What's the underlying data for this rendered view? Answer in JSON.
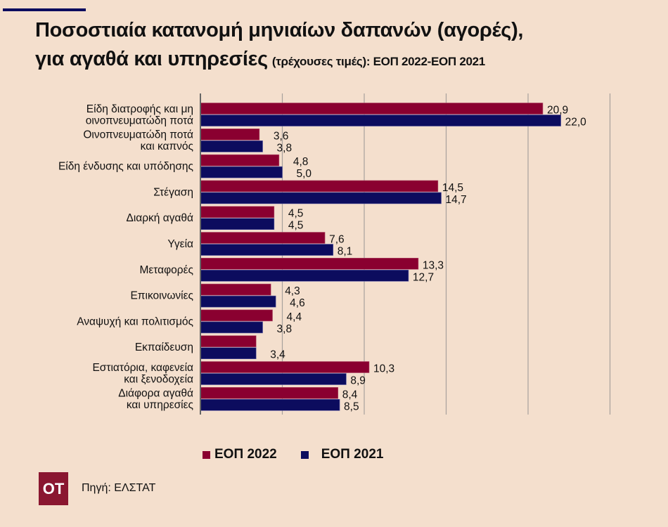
{
  "header": {
    "title_line1": "Ποσοστιαία κατανομή μηνιαίων δαπανών (αγορές),",
    "title_line2": "για αγαθά και υπηρεσίες",
    "title_sub": "(τρέχουσες τιμές): ΕΟΠ 2022-ΕΟΠ 2021"
  },
  "colors": {
    "background": "#f4dfcd",
    "series_2022": "#8a0030",
    "series_2021": "#0c0c5e",
    "accent_bar": "#0c0c5e",
    "logo_bg": "#8a1630"
  },
  "chart_data": {
    "type": "bar",
    "orientation": "horizontal",
    "title": "Ποσοστιαία κατανομή μηνιαίων δαπανών (αγορές), για αγαθά και υπηρεσίες (τρέχουσες τιμές): ΕΟΠ 2022-ΕΟΠ 2021",
    "categories": [
      [
        "Είδη διατροφής και μη",
        "οινοπνευματώδη ποτά"
      ],
      [
        "Οινοπνευματώδη ποτά",
        "και καπνός"
      ],
      [
        "Είδη ένδυσης και υπόδησης"
      ],
      [
        "Στέγαση"
      ],
      [
        "Διαρκή αγαθά"
      ],
      [
        "Υγεία"
      ],
      [
        "Μεταφορές"
      ],
      [
        "Επικοινωνίες"
      ],
      [
        "Αναψυχή και πολιτισμός"
      ],
      [
        "Εκπαίδευση"
      ],
      [
        "Εστιατόρια, καφενεία",
        "και ξενοδοχεία"
      ],
      [
        "Διάφορα αγαθά",
        "και υπηρεσίες"
      ]
    ],
    "series": [
      {
        "name": "ΕΟΠ 2022",
        "color": "#8a0030",
        "values": [
          20.9,
          3.6,
          4.8,
          14.5,
          4.5,
          7.6,
          13.3,
          4.3,
          4.4,
          3.4,
          10.3,
          8.4
        ],
        "labels": [
          "20,9",
          "3,6",
          "4,8",
          "14,5",
          "4,5",
          "7,6",
          "13,3",
          "4,3",
          "4,4",
          "",
          "10,3",
          "8,4"
        ]
      },
      {
        "name": "ΕΟΠ 2021",
        "color": "#0c0c5e",
        "values": [
          22.0,
          3.8,
          5.0,
          14.7,
          4.5,
          8.1,
          12.7,
          4.6,
          3.8,
          3.4,
          8.9,
          8.5
        ],
        "labels": [
          "22,0",
          "3,8",
          "5,0",
          "14,7",
          "4,5",
          "8,1",
          "12,7",
          "4,6",
          "3,8",
          "3,4",
          "8,9",
          "8,5"
        ]
      }
    ],
    "xlim": [
      0,
      25
    ],
    "grid": true,
    "grid_step": 5,
    "xlabel": "",
    "ylabel": "",
    "legend": "bottom"
  },
  "legend": {
    "items": [
      {
        "label": "ΕΟΠ 2022"
      },
      {
        "label": "ΕΟΠ 2021"
      }
    ]
  },
  "footer": {
    "logo_text": "ΟΤ",
    "source": "Πηγή: ΕΛΣΤΑΤ"
  }
}
